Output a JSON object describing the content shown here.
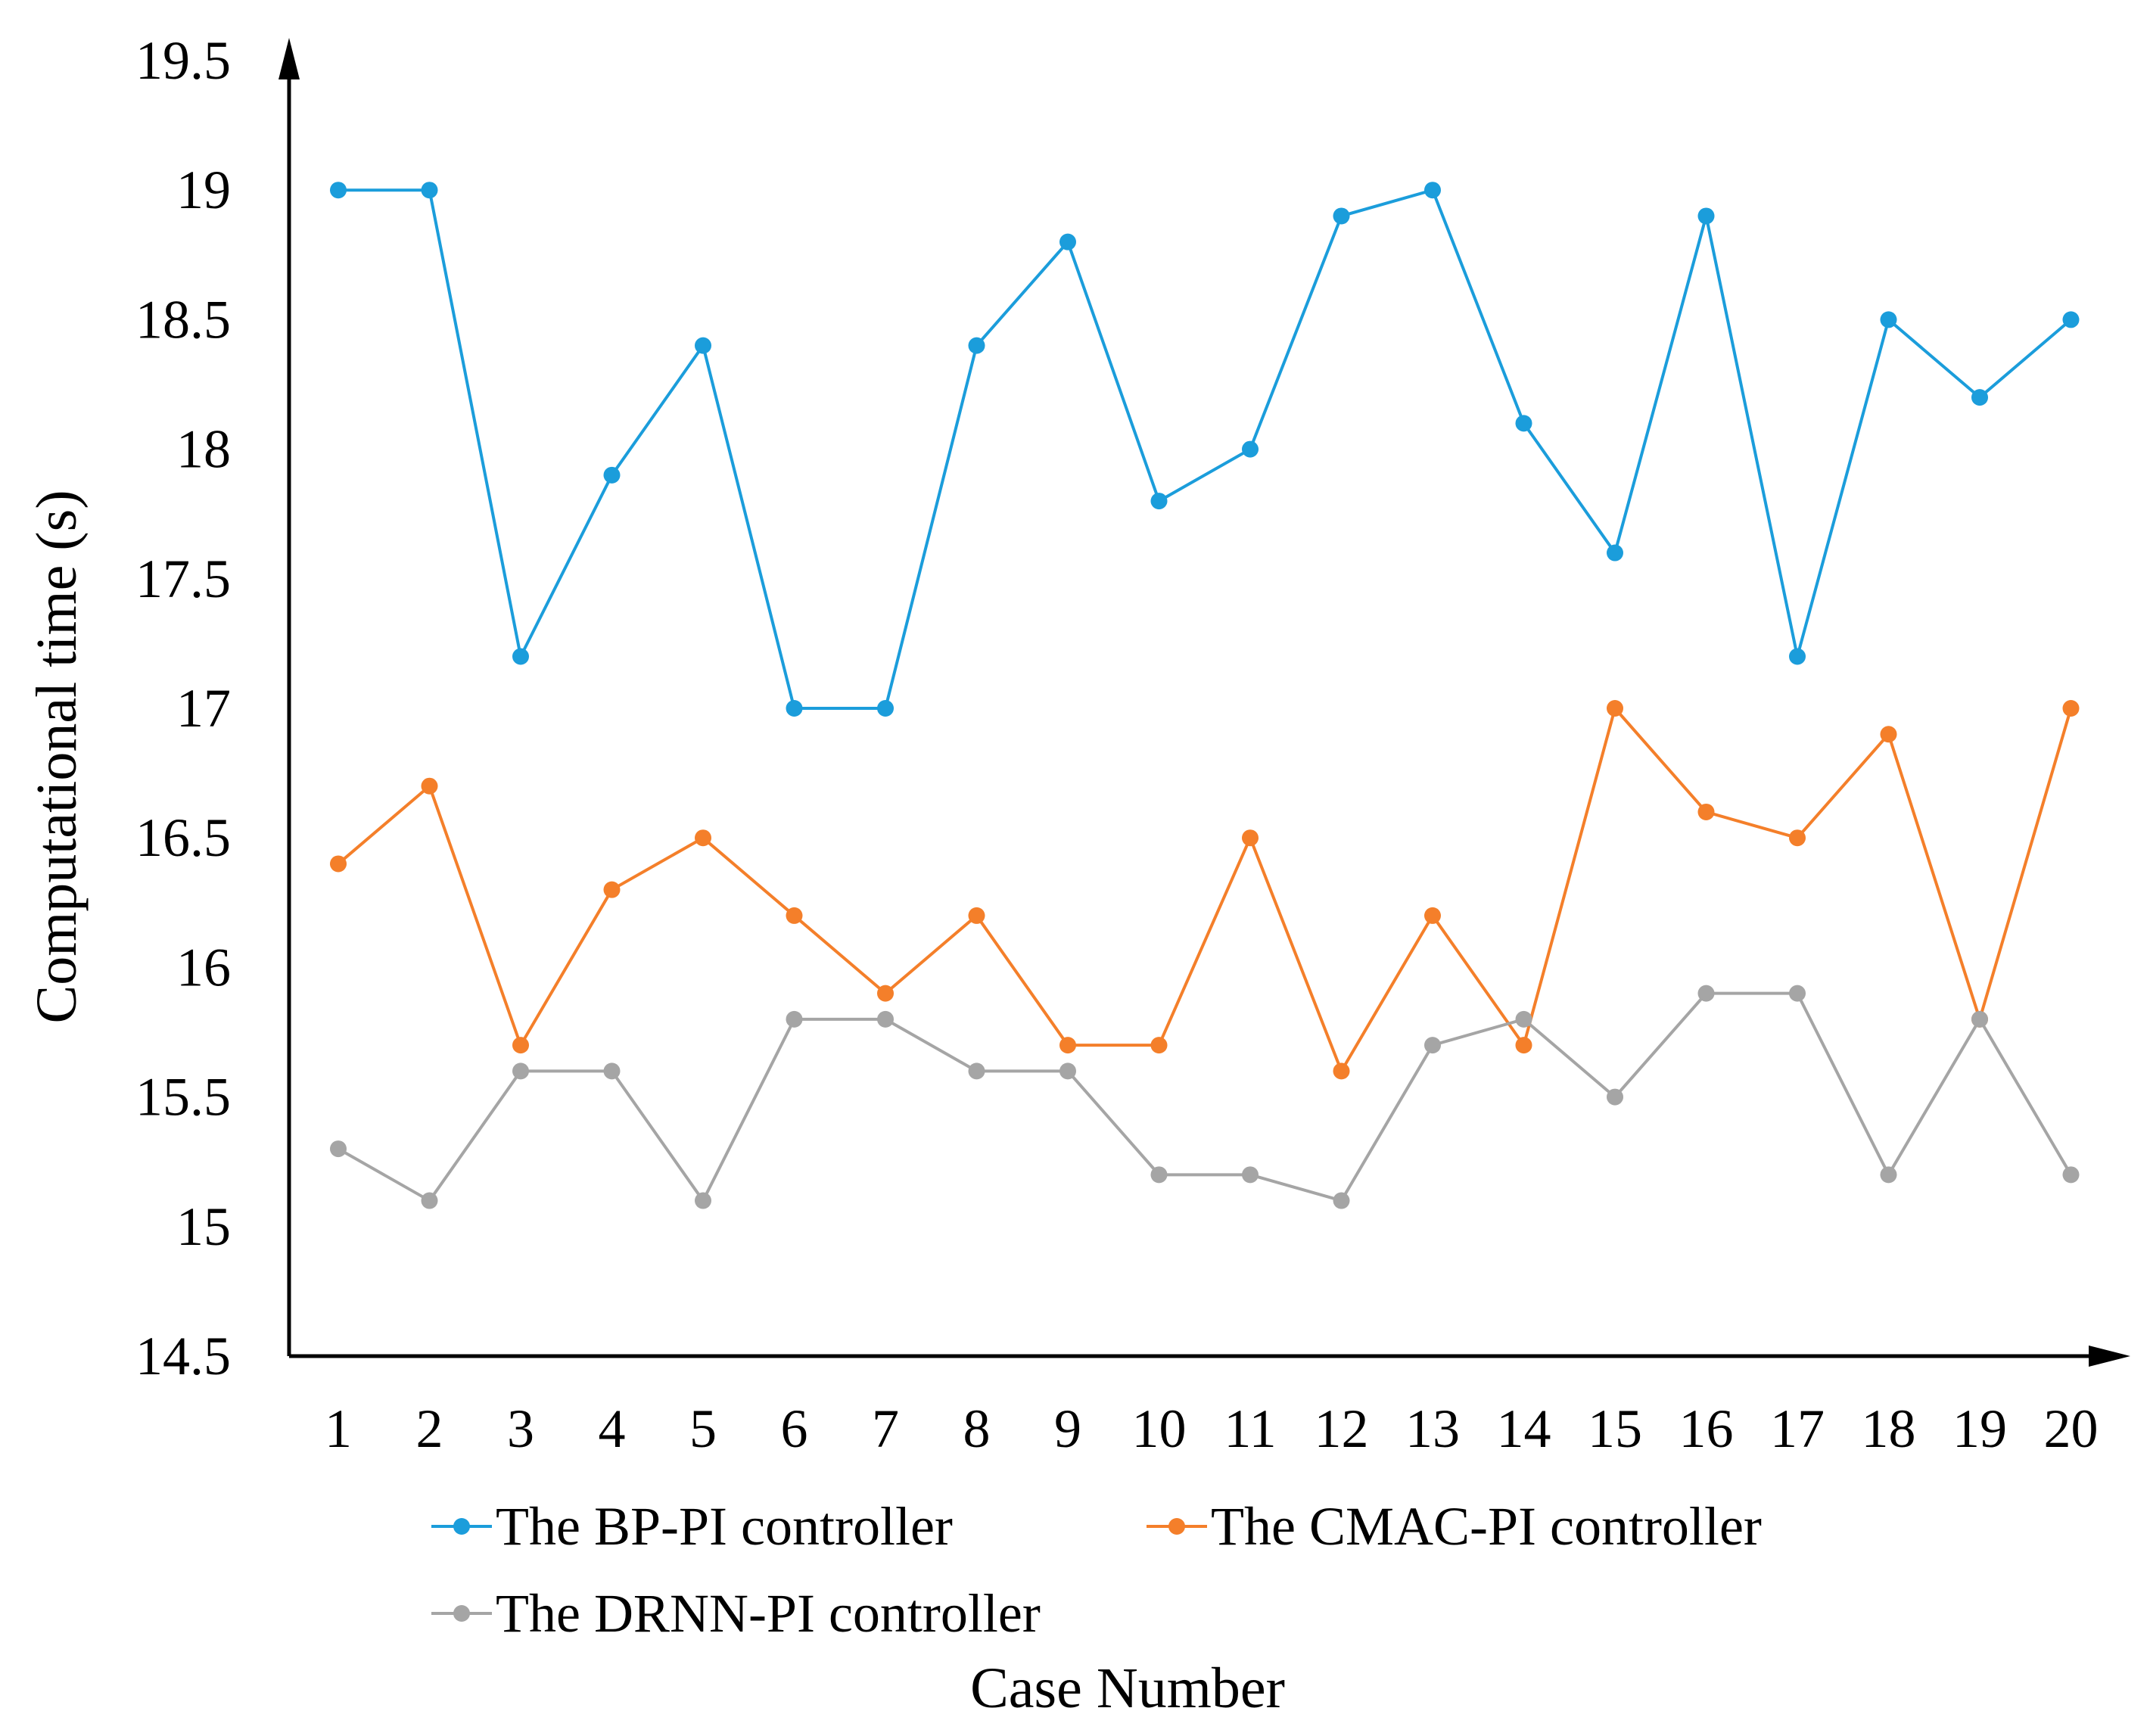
{
  "chart_data": {
    "type": "line",
    "title": "",
    "xlabel": "Case Number",
    "ylabel": "Computational time (s)",
    "ylim": [
      14.5,
      19.5
    ],
    "yticks": [
      "14.5",
      "15",
      "15.5",
      "16",
      "16.5",
      "17",
      "17.5",
      "18",
      "18.5",
      "19",
      "19.5"
    ],
    "ytick_values": [
      14.5,
      15,
      15.5,
      16,
      16.5,
      17,
      17.5,
      18,
      18.5,
      19,
      19.5
    ],
    "categories": [
      "1",
      "2",
      "3",
      "4",
      "5",
      "6",
      "7",
      "8",
      "9",
      "10",
      "11",
      "12",
      "13",
      "14",
      "15",
      "16",
      "17",
      "18",
      "19",
      "20"
    ],
    "grid": false,
    "legend_position": "bottom",
    "series": [
      {
        "name": "The BP-PI controller",
        "color": "#1b9ddb",
        "values": [
          19.0,
          19.0,
          17.2,
          17.9,
          18.4,
          17.0,
          17.0,
          18.4,
          18.8,
          17.8,
          18.0,
          18.9,
          19.0,
          18.1,
          17.6,
          18.9,
          17.2,
          18.5,
          18.2,
          18.5
        ]
      },
      {
        "name": "The CMAC-PI controller",
        "color": "#f47f2a",
        "values": [
          16.4,
          16.7,
          15.7,
          16.3,
          16.5,
          16.2,
          15.9,
          16.2,
          15.7,
          15.7,
          16.5,
          15.6,
          16.2,
          15.7,
          17.0,
          16.6,
          16.5,
          16.9,
          15.8,
          17.0
        ]
      },
      {
        "name": "The DRNN-PI controller",
        "color": "#a5a5a5",
        "values": [
          15.3,
          15.1,
          15.6,
          15.6,
          15.1,
          15.8,
          15.8,
          15.6,
          15.6,
          15.2,
          15.2,
          15.1,
          15.7,
          15.8,
          15.5,
          15.9,
          15.9,
          15.2,
          15.8,
          15.2
        ]
      }
    ]
  }
}
